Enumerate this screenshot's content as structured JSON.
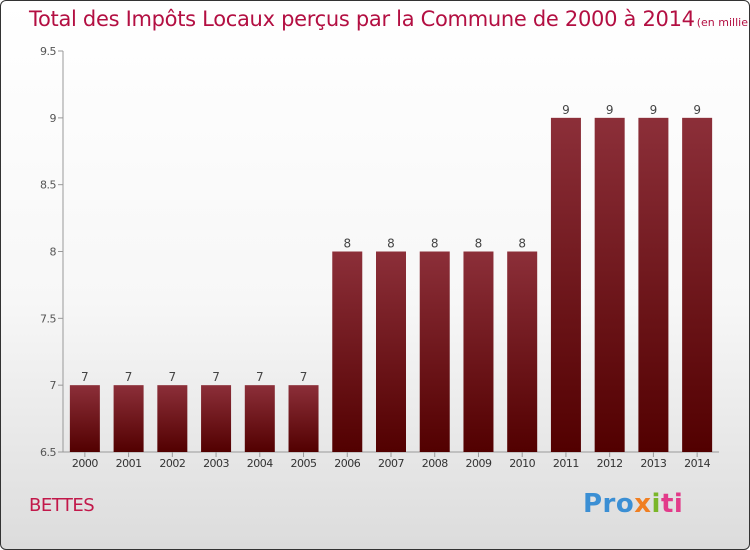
{
  "header": {
    "title": "Total des Impôts Locaux perçus par la Commune de 2000 à 2014",
    "unit_note": "(en milliers d'€)"
  },
  "commune_label": "BETTES",
  "brand": {
    "name": "Proxiti",
    "letters": [
      "Pro",
      "x",
      "i",
      "ti"
    ]
  },
  "colors": {
    "bar_top": "#8c2f39",
    "bar_bottom": "#520000",
    "title": "#b30f42"
  },
  "chart_data": {
    "type": "bar",
    "title": "Total des Impôts Locaux perçus par la Commune de 2000 à 2014",
    "xlabel": "",
    "ylabel": "",
    "categories": [
      "2000",
      "2001",
      "2002",
      "2003",
      "2004",
      "2005",
      "2006",
      "2007",
      "2008",
      "2009",
      "2010",
      "2011",
      "2012",
      "2013",
      "2014"
    ],
    "values": [
      7,
      7,
      7,
      7,
      7,
      7,
      8,
      8,
      8,
      8,
      8,
      9,
      9,
      9,
      9
    ],
    "data_labels": [
      "7",
      "7",
      "7",
      "7",
      "7",
      "7",
      "8",
      "8",
      "8",
      "8",
      "8",
      "9",
      "9",
      "9",
      "9"
    ],
    "ylim": [
      6.5,
      9.5
    ],
    "yticks": [
      6.5,
      7,
      7.5,
      8,
      8.5,
      9,
      9.5
    ],
    "ytick_labels": [
      "6.5",
      "7",
      "7.5",
      "8",
      "8.5",
      "9",
      "9.5"
    ],
    "grid": false
  }
}
